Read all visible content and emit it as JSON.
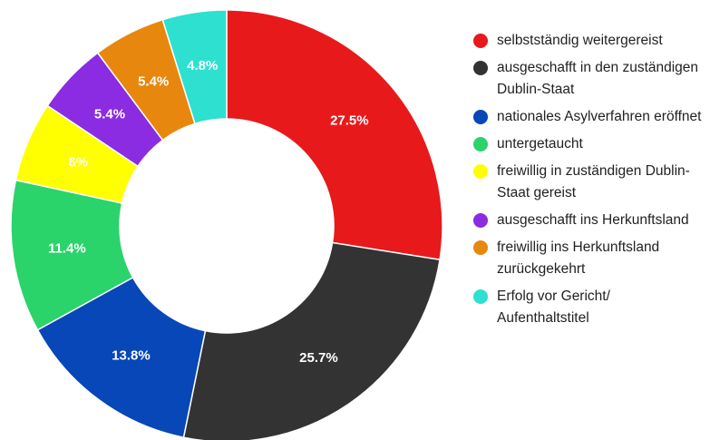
{
  "chart_data": {
    "type": "donut",
    "series": [
      {
        "name": "selbstständig weitergereist",
        "color": "#e8191b",
        "values": [
          27.5
        ],
        "value_labels": [
          "27.5%"
        ]
      },
      {
        "name": "ausgeschafft in den zuständigen Dublin-Staat",
        "color": "#333333",
        "values": [
          25.7
        ],
        "value_labels": [
          "25.7%"
        ]
      },
      {
        "name": "nationales Asylverfahren eröffnet",
        "color": "#0747b7",
        "values": [
          13.8
        ],
        "value_labels": [
          "13.8%"
        ]
      },
      {
        "name": "untergetaucht",
        "color": "#2bd36b",
        "values": [
          11.4
        ],
        "value_labels": [
          "11.4%"
        ]
      },
      {
        "name": "freiwillig in zuständigen Dublin-Staat gereist",
        "color": "#ffff00",
        "values": [
          6
        ],
        "value_labels": [
          "6%"
        ]
      },
      {
        "name": "ausgeschafft ins Herkunftsland",
        "color": "#8b2be2",
        "values": [
          5.4
        ],
        "value_labels": [
          "5.4%"
        ]
      },
      {
        "name": "freiwillig ins Herkunftsland zurückgekehrt",
        "color": "#e8870e",
        "values": [
          5.4
        ],
        "value_labels": [
          "5.4%"
        ]
      },
      {
        "name": "Erfolg vor Gericht/ Aufenthaltstitel",
        "color": "#2de0d0",
        "values": [
          4.8
        ],
        "value_labels": [
          "4.8%"
        ]
      }
    ],
    "legend": "right"
  }
}
